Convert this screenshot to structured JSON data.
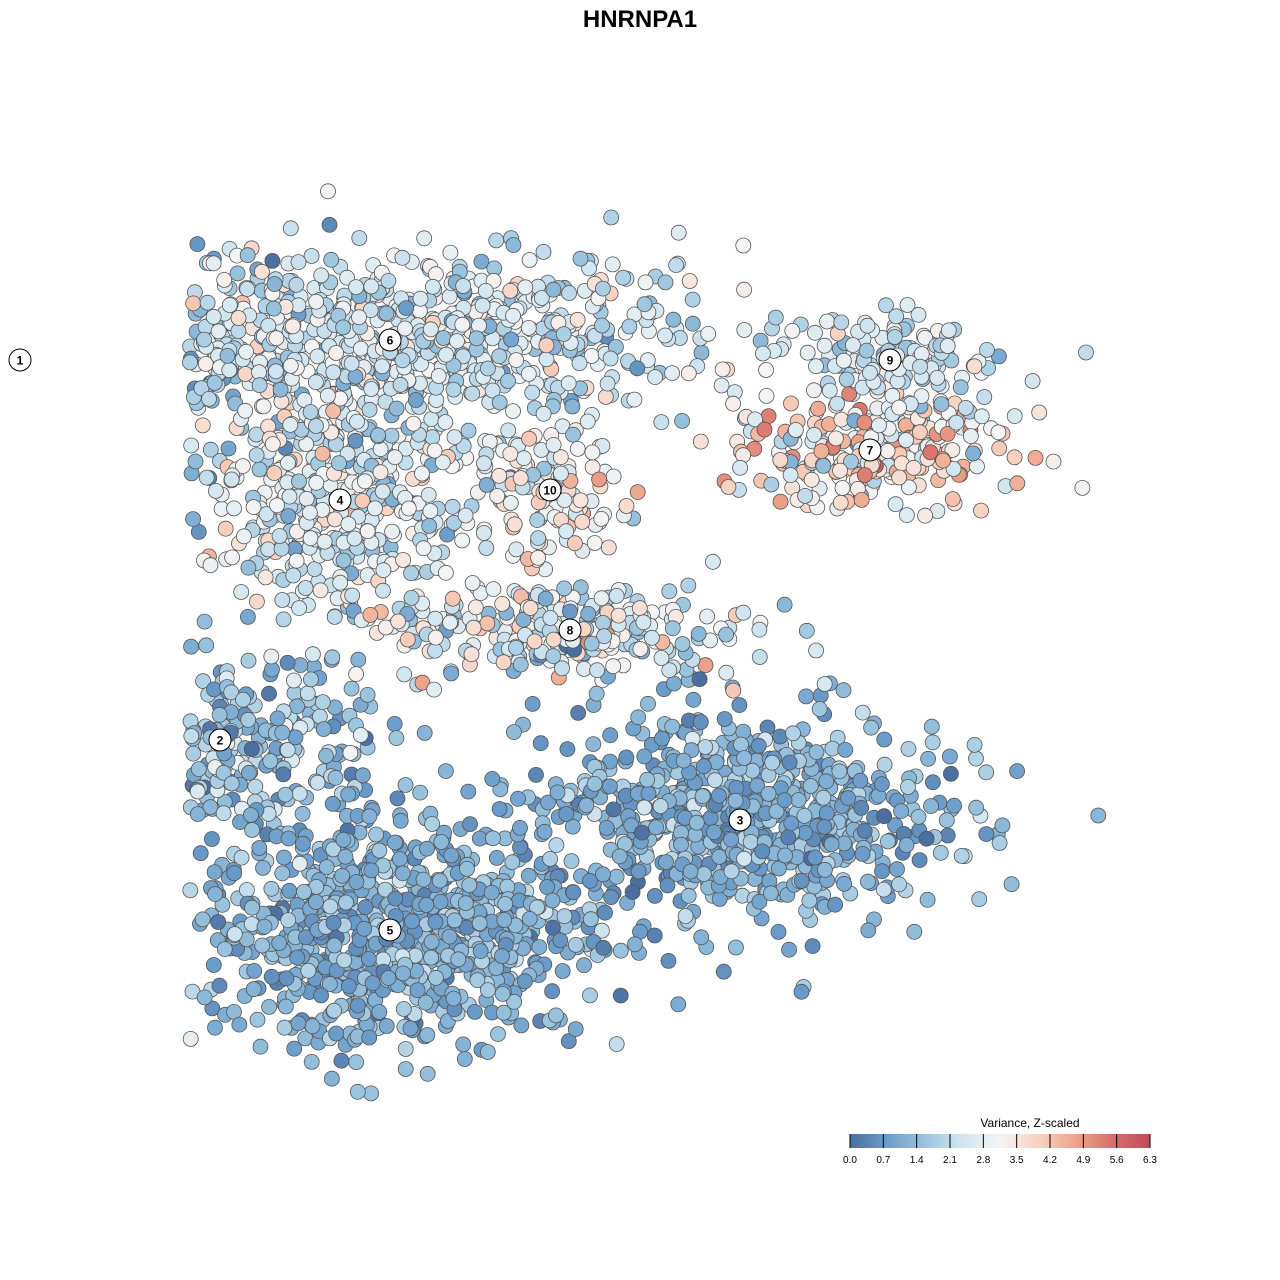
{
  "chart_data": {
    "type": "scatter",
    "title": "HNRNPA1",
    "legend": {
      "title": "Variance, Z-scaled",
      "placement": "bottom-right",
      "range": [
        0,
        6.3
      ],
      "ticks": [
        "0.0",
        "0.7",
        "1.4",
        "2.1",
        "2.8",
        "3.5",
        "4.2",
        "4.9",
        "5.6",
        "6.3"
      ],
      "colors": [
        "#4a6ea0",
        "#6b9dcb",
        "#9ac4de",
        "#d2e6f0",
        "#f4f4f4",
        "#f9d3c2",
        "#eda58c",
        "#d76f6a",
        "#c04b5a"
      ]
    },
    "axes": {
      "visible": false,
      "grid": false
    },
    "clusters": [
      {
        "id": "1",
        "label": "1",
        "cx": -620,
        "cy": 280,
        "sx": 95,
        "sy": 85,
        "n": 900,
        "mean": 1.3,
        "sd": 0.5
      },
      {
        "id": "2",
        "label": "2",
        "cx": -420,
        "cy": -100,
        "sx": 85,
        "sy": 45,
        "n": 320,
        "mean": 1.5,
        "sd": 0.6
      },
      {
        "id": "3",
        "label": "3",
        "cx": 100,
        "cy": -180,
        "sx": 100,
        "sy": 55,
        "n": 750,
        "mean": 1.2,
        "sd": 0.5
      },
      {
        "id": "4",
        "label": "4",
        "cx": -300,
        "cy": 140,
        "sx": 65,
        "sy": 55,
        "n": 420,
        "mean": 2.7,
        "sd": 0.7
      },
      {
        "id": "5",
        "label": "5",
        "cx": -250,
        "cy": -290,
        "sx": 95,
        "sy": 55,
        "n": 900,
        "mean": 1.2,
        "sd": 0.45
      },
      {
        "id": "6",
        "label": "6",
        "cx": -250,
        "cy": 300,
        "sx": 150,
        "sy": 45,
        "n": 800,
        "mean": 2.4,
        "sd": 0.65
      },
      {
        "id": "7",
        "label": "7",
        "cx": 230,
        "cy": 190,
        "sx": 70,
        "sy": 28,
        "n": 260,
        "mean": 3.4,
        "sd": 0.9
      },
      {
        "id": "8",
        "label": "8",
        "cx": -70,
        "cy": 10,
        "sx": 90,
        "sy": 25,
        "n": 260,
        "mean": 2.6,
        "sd": 1.0
      },
      {
        "id": "9",
        "label": "9",
        "cx": 250,
        "cy": 280,
        "sx": 55,
        "sy": 22,
        "n": 140,
        "mean": 2.3,
        "sd": 0.5
      },
      {
        "id": "10",
        "label": "10",
        "cx": -90,
        "cy": 150,
        "sx": 35,
        "sy": 35,
        "n": 120,
        "mean": 2.9,
        "sd": 0.8
      }
    ]
  }
}
